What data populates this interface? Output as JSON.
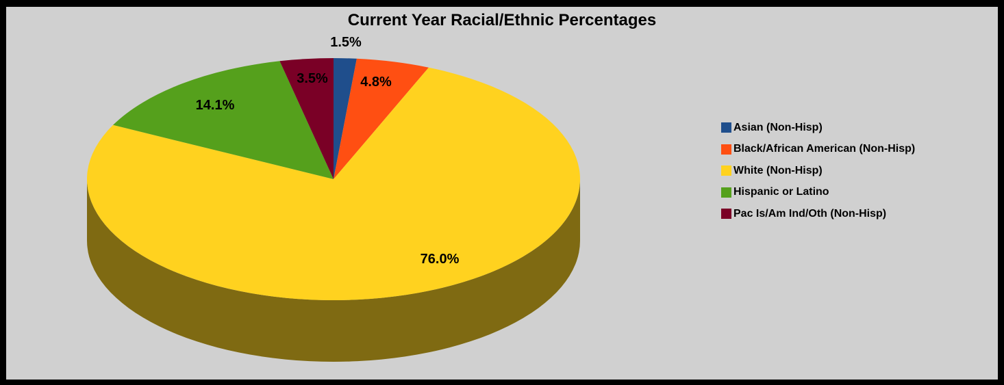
{
  "chart_data": {
    "type": "pie",
    "title": "Current Year Racial/Ethnic Percentages",
    "categories": [
      "Asian (Non-Hisp)",
      "Black/African American (Non-Hisp)",
      "White (Non-Hisp)",
      "Hispanic or Latino",
      "Pac Is/Am Ind/Oth (Non-Hisp)"
    ],
    "values": [
      1.5,
      4.8,
      76.0,
      14.1,
      3.5
    ],
    "data_labels": [
      "1.5%",
      "4.8%",
      "76.0%",
      "14.1%",
      "3.5%"
    ],
    "colors": [
      "#1f4e8c",
      "#ff4f12",
      "#ffd21f",
      "#55a01c",
      "#7a0026"
    ],
    "style": "3d",
    "legend_position": "right",
    "grid": false
  },
  "colors": {
    "plot_background": "#d0d0d0",
    "frame": "#000000",
    "pie_side": "#7f6a12"
  }
}
